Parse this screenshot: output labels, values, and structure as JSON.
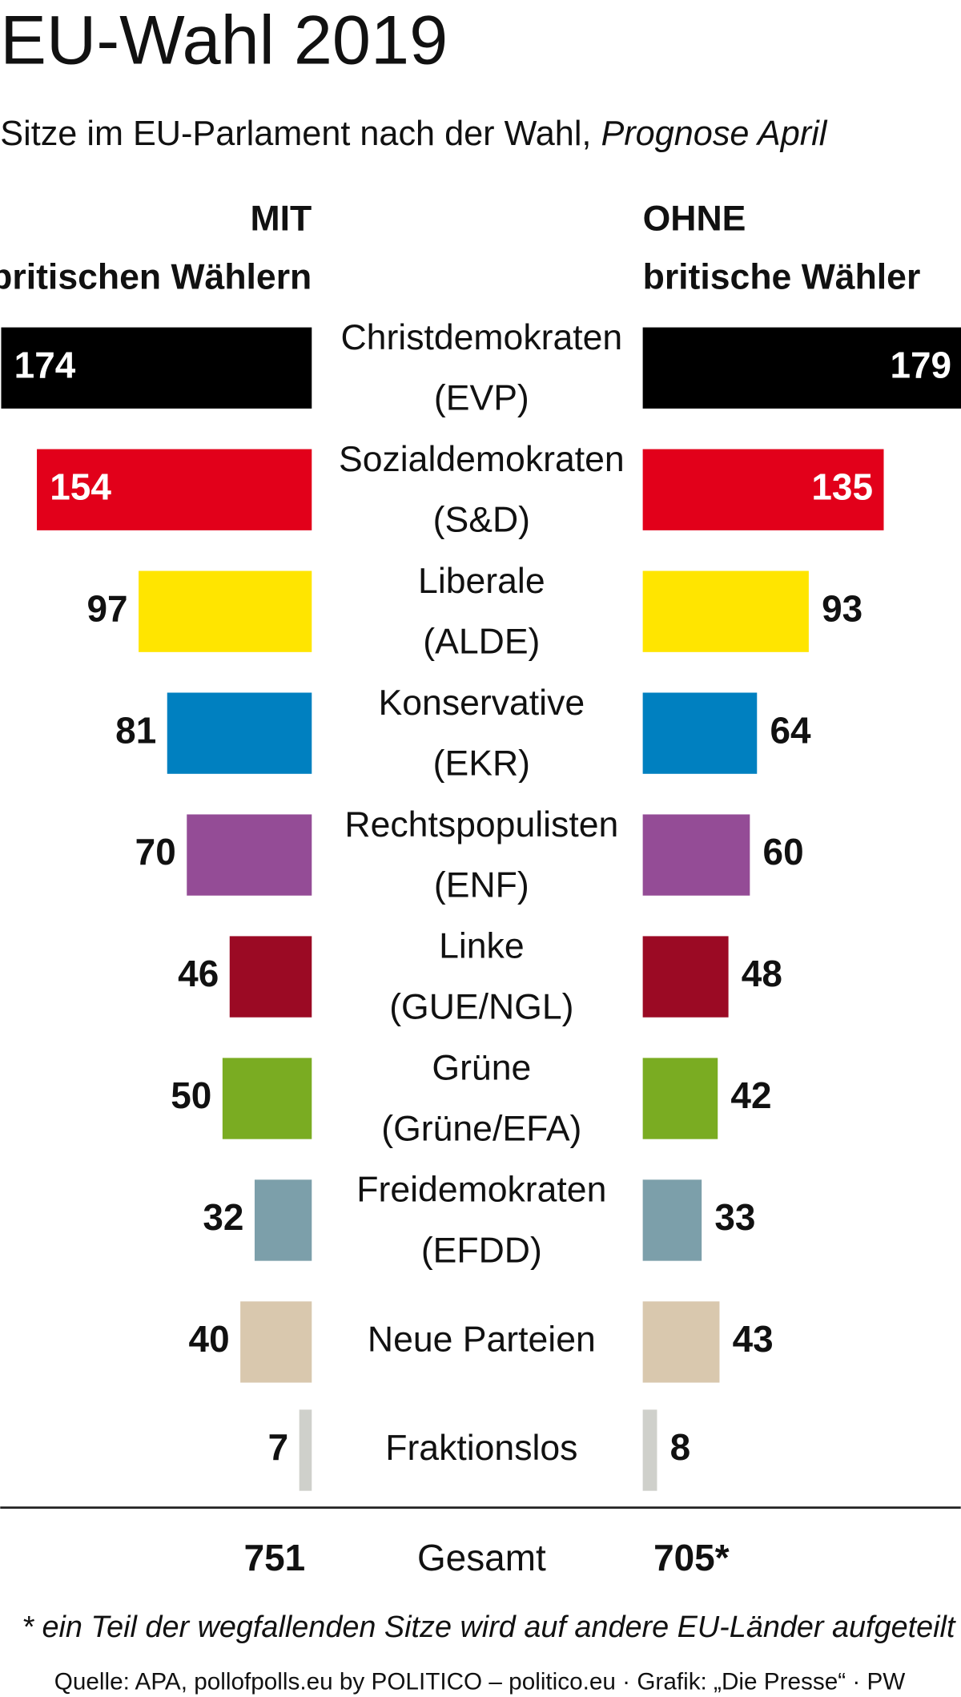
{
  "chart_data": {
    "type": "butterfly",
    "title": "EU-Wahl 2019",
    "subtitle": "Sitze im EU-Parlament nach der Wahl,",
    "subtitle_em": "Prognose April",
    "categories": [
      {
        "name": "Christdemokraten",
        "group": "(EVP)"
      },
      {
        "name": "Sozialdemokraten",
        "group": "(S&D)"
      },
      {
        "name": "Liberale",
        "group": "(ALDE)"
      },
      {
        "name": "Konservative",
        "group": "(EKR)"
      },
      {
        "name": "Rechtspopulisten",
        "group": "(ENF)"
      },
      {
        "name": "Linke",
        "group": "(GUE/NGL)"
      },
      {
        "name": "Grüne",
        "group": "(Grüne/EFA)"
      },
      {
        "name": "Freidemokraten",
        "group": "(EFDD)"
      },
      {
        "name": "Neue Parteien"
      },
      {
        "name": "Fraktionslos"
      }
    ],
    "colors": [
      "#000000",
      "#e2001a",
      "#ffe500",
      "#0080c0",
      "#944c96",
      "#9b0a24",
      "#7aac22",
      "#7c9faa",
      "#d9c8ae",
      "#cfd0cb"
    ],
    "series": [
      {
        "name": "MIT",
        "subname": "britischen Wählern",
        "values": [
          174,
          154,
          97,
          81,
          70,
          46,
          50,
          32,
          40,
          7
        ]
      },
      {
        "name": "OHNE",
        "subname": "britische Wähler",
        "values": [
          179,
          135,
          93,
          64,
          60,
          48,
          42,
          33,
          43,
          8
        ]
      }
    ],
    "xlim": [
      0,
      180
    ],
    "totals": {
      "label": "Gesamt",
      "values": [
        751,
        705
      ],
      "value_labels": [
        "751",
        "705*"
      ]
    },
    "footnote": "* ein Teil der wegfallenden Sitze wird auf andere EU-Länder aufgeteilt",
    "source": "Quelle: APA, pollofpolls.eu by POLITICO – politico.eu · Grafik: „Die Presse“ · PW"
  }
}
